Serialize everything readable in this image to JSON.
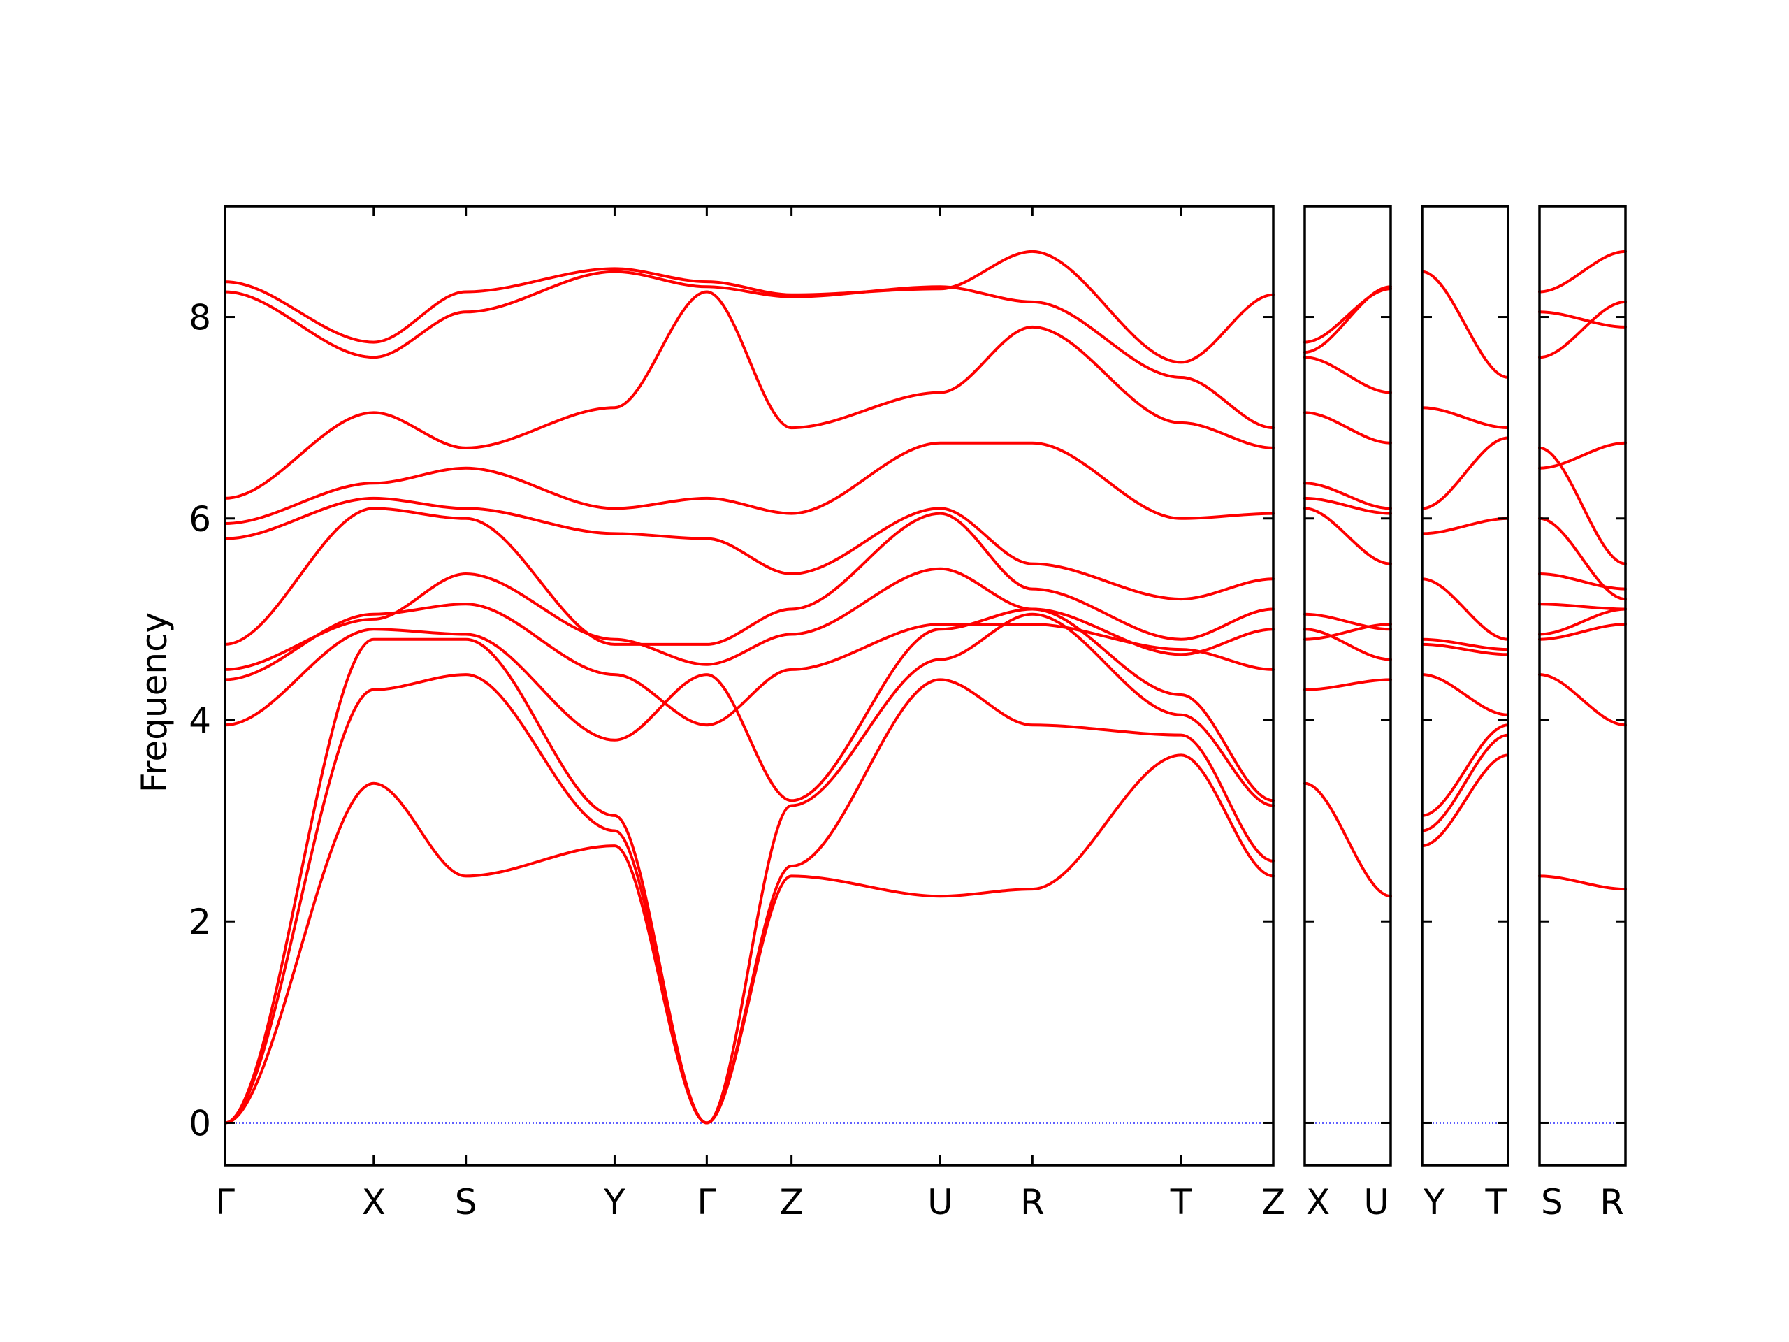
{
  "chart_data": {
    "type": "line",
    "title": "",
    "ylabel": "Frequency",
    "ylim": [
      -0.42,
      9.1
    ],
    "yticks": [
      0,
      2,
      4,
      6,
      8
    ],
    "grid": false,
    "colors": {
      "bands": "#ff0000",
      "zero_line": "#0000ff",
      "frame": "#000000"
    },
    "panels": [
      {
        "name": "Γ-X-S-Y-Γ-Z-U-R-T-Z",
        "x": [
          0,
          1.0,
          1.62,
          2.62,
          3.24,
          3.81,
          4.81,
          5.43,
          6.43,
          7.05
        ],
        "ticks": [
          {
            "x": 0,
            "label": "Γ"
          },
          {
            "x": 1.0,
            "label": "X"
          },
          {
            "x": 1.62,
            "label": "S"
          },
          {
            "x": 2.62,
            "label": "Y"
          },
          {
            "x": 3.24,
            "label": "Γ"
          },
          {
            "x": 3.81,
            "label": "Z"
          },
          {
            "x": 4.81,
            "label": "U"
          },
          {
            "x": 5.43,
            "label": "R"
          },
          {
            "x": 6.43,
            "label": "T"
          },
          {
            "x": 7.05,
            "label": "Z"
          }
        ],
        "series": [
          {
            "values": [
              0,
              3.37,
              2.45,
              2.75,
              0,
              2.45,
              2.25,
              2.32,
              3.65,
              2.45
            ]
          },
          {
            "values": [
              0,
              4.3,
              4.45,
              2.9,
              0,
              2.55,
              4.4,
              3.95,
              3.85,
              2.6
            ]
          },
          {
            "values": [
              0,
              4.8,
              4.8,
              3.05,
              0,
              3.15,
              4.6,
              5.05,
              4.05,
              3.15
            ]
          },
          {
            "values": [
              3.95,
              4.9,
              4.85,
              3.8,
              4.45,
              3.2,
              4.9,
              5.1,
              4.25,
              3.2
            ]
          },
          {
            "values": [
              4.4,
              5.05,
              5.15,
              4.45,
              3.95,
              4.5,
              4.95,
              4.95,
              4.7,
              4.5
            ]
          },
          {
            "values": [
              4.5,
              5.0,
              5.45,
              4.8,
              4.55,
              4.85,
              5.5,
              5.1,
              4.65,
              4.9
            ]
          },
          {
            "values": [
              4.75,
              6.1,
              6.0,
              4.75,
              4.75,
              5.1,
              6.05,
              5.3,
              4.8,
              5.1
            ]
          },
          {
            "values": [
              5.8,
              6.2,
              6.1,
              5.85,
              5.8,
              5.45,
              6.1,
              5.55,
              5.2,
              5.4
            ]
          },
          {
            "values": [
              5.95,
              6.35,
              6.5,
              6.1,
              6.2,
              6.05,
              6.75,
              6.75,
              6.0,
              6.05
            ]
          },
          {
            "values": [
              6.2,
              7.05,
              6.7,
              7.1,
              8.25,
              6.9,
              7.25,
              7.9,
              6.95,
              6.7
            ]
          },
          {
            "values": [
              8.25,
              7.6,
              8.05,
              8.45,
              8.3,
              8.2,
              8.3,
              8.15,
              7.4,
              6.9
            ]
          },
          {
            "values": [
              8.35,
              7.75,
              8.25,
              8.48,
              8.35,
              8.22,
              8.28,
              8.65,
              7.55,
              8.22
            ]
          }
        ]
      },
      {
        "name": "X-U",
        "x": [
          0,
          1.0
        ],
        "ticks": [
          {
            "x": 0,
            "label": "X"
          },
          {
            "x": 1.0,
            "label": "U"
          }
        ],
        "series": [
          {
            "values": [
              3.37,
              2.25
            ]
          },
          {
            "values": [
              4.3,
              4.4
            ]
          },
          {
            "values": [
              4.8,
              4.95
            ]
          },
          {
            "values": [
              4.9,
              4.6
            ]
          },
          {
            "values": [
              5.05,
              4.9
            ]
          },
          {
            "values": [
              6.1,
              5.55
            ]
          },
          {
            "values": [
              6.2,
              6.05
            ]
          },
          {
            "values": [
              6.35,
              6.1
            ]
          },
          {
            "values": [
              7.05,
              6.75
            ]
          },
          {
            "values": [
              7.6,
              7.25
            ]
          },
          {
            "values": [
              7.65,
              8.3
            ]
          },
          {
            "values": [
              7.75,
              8.28
            ]
          }
        ]
      },
      {
        "name": "Y-T",
        "x": [
          0,
          1.0
        ],
        "ticks": [
          {
            "x": 0,
            "label": "Y"
          },
          {
            "x": 1.0,
            "label": "T"
          }
        ],
        "series": [
          {
            "values": [
              2.75,
              3.65
            ]
          },
          {
            "values": [
              2.9,
              3.85
            ]
          },
          {
            "values": [
              3.05,
              3.95
            ]
          },
          {
            "values": [
              4.45,
              4.05
            ]
          },
          {
            "values": [
              4.75,
              4.65
            ]
          },
          {
            "values": [
              4.8,
              4.7
            ]
          },
          {
            "values": [
              5.4,
              4.8
            ]
          },
          {
            "values": [
              5.85,
              6.0
            ]
          },
          {
            "values": [
              6.1,
              6.8
            ]
          },
          {
            "values": [
              7.1,
              6.9
            ]
          },
          {
            "values": [
              8.45,
              7.4
            ]
          }
        ]
      },
      {
        "name": "S-R",
        "x": [
          0,
          1.0
        ],
        "ticks": [
          {
            "x": 0,
            "label": "S"
          },
          {
            "x": 1.0,
            "label": "R"
          }
        ],
        "series": [
          {
            "values": [
              2.45,
              2.32
            ]
          },
          {
            "values": [
              4.45,
              3.95
            ]
          },
          {
            "values": [
              4.8,
              4.95
            ]
          },
          {
            "values": [
              4.85,
              5.1
            ]
          },
          {
            "values": [
              5.15,
              5.1
            ]
          },
          {
            "values": [
              5.45,
              5.3
            ]
          },
          {
            "values": [
              6.0,
              5.2
            ]
          },
          {
            "values": [
              6.7,
              5.55
            ]
          },
          {
            "values": [
              6.5,
              6.75
            ]
          },
          {
            "values": [
              7.6,
              8.15
            ]
          },
          {
            "values": [
              8.05,
              7.9
            ]
          },
          {
            "values": [
              8.25,
              8.65
            ]
          }
        ]
      }
    ]
  }
}
